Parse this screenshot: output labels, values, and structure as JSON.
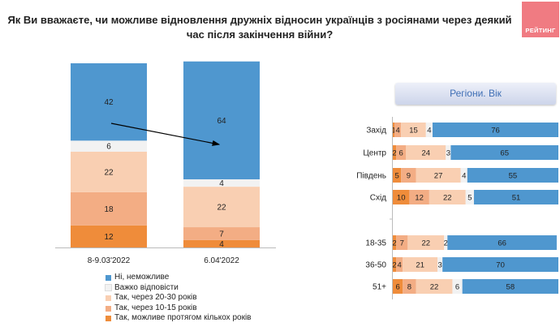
{
  "title": "Як Ви вважаєте, чи можливе відновлення дружніх відносин українців з росіянами через деякий час після закінчення війни?",
  "logo_text": "РЕЙТИНГ",
  "colors": {
    "impossible": "#4f97cf",
    "hard_to_say": "#f2f2f2",
    "years_20_30": "#f9cfb2",
    "years_10_15": "#f3ad84",
    "few_years": "#ef8c3a"
  },
  "legend": [
    {
      "key": "impossible",
      "label": "Ні, неможливе"
    },
    {
      "key": "hard_to_say",
      "label": "Важко відповісти"
    },
    {
      "key": "years_20_30",
      "label": "Так, через 20-30 років"
    },
    {
      "key": "years_10_15",
      "label": "Так, через 10-15 років"
    },
    {
      "key": "few_years",
      "label": "Так, можливе протягом кількох років"
    }
  ],
  "chart_data": [
    {
      "type": "bar",
      "stacked": true,
      "orientation": "vertical",
      "categories": [
        "8-9.03'2022",
        "6.04'2022"
      ],
      "series": [
        {
          "name": "Так, можливе протягом кількох років",
          "key": "few_years",
          "values": [
            12,
            4
          ]
        },
        {
          "name": "Так, через 10-15 років",
          "key": "years_10_15",
          "values": [
            18,
            7
          ]
        },
        {
          "name": "Так, через 20-30 років",
          "key": "years_20_30",
          "values": [
            22,
            22
          ]
        },
        {
          "name": "Важко відповісти",
          "key": "hard_to_say",
          "values": [
            6,
            4
          ]
        },
        {
          "name": "Ні, неможливе",
          "key": "impossible",
          "values": [
            42,
            64
          ]
        }
      ]
    },
    {
      "type": "bar",
      "stacked": true,
      "orientation": "horizontal",
      "title": "Регіони. Вік",
      "groups": [
        {
          "categories": [
            "Захід",
            "Центр",
            "Південь",
            "Схід"
          ]
        },
        {
          "categories": [
            "18-35",
            "36-50",
            "51+"
          ]
        }
      ],
      "series": [
        {
          "name": "Так, можливе протягом кількох років",
          "key": "few_years",
          "values": [
            1,
            2,
            5,
            10,
            2,
            2,
            6
          ]
        },
        {
          "name": "Так, через 10-15 років",
          "key": "years_10_15",
          "values": [
            4,
            6,
            9,
            12,
            7,
            4,
            8
          ]
        },
        {
          "name": "Так, через 20-30 років",
          "key": "years_20_30",
          "values": [
            15,
            24,
            27,
            22,
            22,
            21,
            22
          ]
        },
        {
          "name": "Важко відповісти",
          "key": "hard_to_say",
          "values": [
            4,
            3,
            4,
            5,
            2,
            3,
            6
          ]
        },
        {
          "name": "Ні, неможливе",
          "key": "impossible",
          "values": [
            76,
            65,
            55,
            51,
            66,
            70,
            58
          ]
        }
      ]
    }
  ]
}
